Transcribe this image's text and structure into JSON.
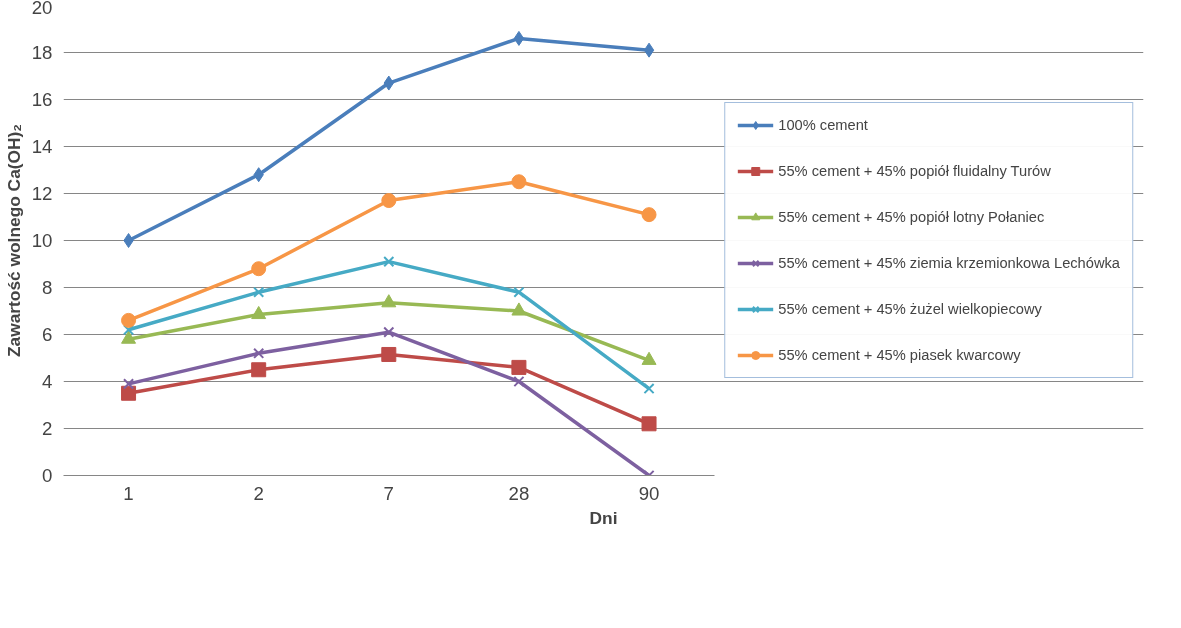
{
  "chart_data": {
    "type": "line",
    "xlabel": "Dni",
    "ylabel": "Zawartość wolnego Ca(OH)₂",
    "categories": [
      "1",
      "2",
      "7",
      "28",
      "90"
    ],
    "ylim": [
      0,
      20
    ],
    "yticks": [
      0,
      2,
      4,
      6,
      8,
      10,
      12,
      14,
      16,
      18,
      20
    ],
    "grid": "y",
    "legend": "right",
    "line_style": "solid",
    "series": [
      {
        "name": "100% cement",
        "color": "#4a7ebb",
        "marker": "diamond",
        "values": [
          10.0,
          12.8,
          16.7,
          18.6,
          18.1
        ]
      },
      {
        "name": "55% cement + 45% popiół fluidalny Turów",
        "color": "#be4b48",
        "marker": "square",
        "values": [
          3.5,
          4.5,
          5.15,
          4.6,
          2.2
        ]
      },
      {
        "name": "55% cement + 45% popiół lotny Połaniec",
        "color": "#98b954",
        "marker": "triangle",
        "values": [
          5.8,
          6.85,
          7.35,
          7.0,
          4.9
        ]
      },
      {
        "name": "55% cement + 45% ziemia krzemionkowa Lechówka",
        "color": "#7d60a0",
        "marker": "cross",
        "values": [
          3.9,
          5.2,
          6.1,
          4.0,
          0.0
        ]
      },
      {
        "name": "55% cement + 45% żużel wielkopiecowy",
        "color": "#46aac5",
        "marker": "cross",
        "values": [
          6.2,
          7.8,
          9.1,
          7.8,
          3.7
        ]
      },
      {
        "name": "55% cement + 45% piasek kwarcowy",
        "color": "#f79646",
        "marker": "circle",
        "values": [
          6.6,
          8.8,
          11.7,
          12.5,
          11.1
        ]
      }
    ]
  }
}
